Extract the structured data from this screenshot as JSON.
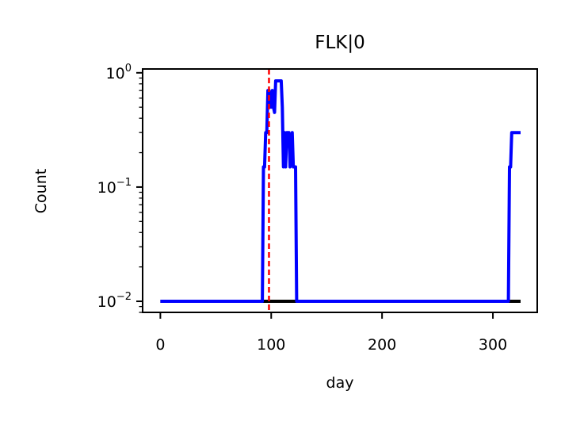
{
  "chart_data": {
    "type": "line",
    "title": "FLK|0",
    "xlabel": "day",
    "ylabel": "Count",
    "xlim": [
      -16,
      340
    ],
    "ylim": [
      0.008,
      1.08
    ],
    "yscale": "log",
    "grid": false,
    "x_ticks": [
      0,
      100,
      200,
      300
    ],
    "x_tick_labels": [
      "0",
      "100",
      "200",
      "300"
    ],
    "y_ticks": [
      0.01,
      0.1,
      1
    ],
    "y_tick_labels": [
      {
        "base": "10",
        "exp": "−2"
      },
      {
        "base": "10",
        "exp": "−1"
      },
      {
        "base": "10",
        "exp": "0"
      }
    ],
    "vline": {
      "x": 98,
      "color": "#ff0000",
      "style": "dashed"
    },
    "series": [
      {
        "color": "#000000",
        "points": [
          [
            0,
            0.01
          ],
          [
            325,
            0.01
          ]
        ]
      },
      {
        "color": "#0000ff",
        "points": [
          [
            0,
            0.01
          ],
          [
            92,
            0.01
          ],
          [
            93,
            0.15
          ],
          [
            94,
            0.15
          ],
          [
            95,
            0.3
          ],
          [
            96,
            0.3
          ],
          [
            97,
            0.7
          ],
          [
            98,
            0.7
          ],
          [
            100,
            0.5
          ],
          [
            101,
            0.7
          ],
          [
            102,
            0.5
          ],
          [
            103,
            0.45
          ],
          [
            104,
            0.85
          ],
          [
            109,
            0.85
          ],
          [
            110,
            0.5
          ],
          [
            111,
            0.15
          ],
          [
            112,
            0.3
          ],
          [
            113,
            0.15
          ],
          [
            114,
            0.3
          ],
          [
            116,
            0.3
          ],
          [
            117,
            0.15
          ],
          [
            119,
            0.3
          ],
          [
            120,
            0.15
          ],
          [
            122,
            0.15
          ],
          [
            123,
            0.01
          ],
          [
            314,
            0.01
          ],
          [
            315,
            0.15
          ],
          [
            316,
            0.15
          ],
          [
            317,
            0.3
          ],
          [
            325,
            0.3
          ]
        ]
      }
    ]
  }
}
